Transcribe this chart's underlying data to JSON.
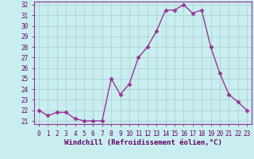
{
  "x": [
    0,
    1,
    2,
    3,
    4,
    5,
    6,
    7,
    8,
    9,
    10,
    11,
    12,
    13,
    14,
    15,
    16,
    17,
    18,
    19,
    20,
    21,
    22,
    23
  ],
  "y": [
    22.0,
    21.5,
    21.8,
    21.8,
    21.2,
    21.0,
    21.0,
    21.0,
    25.0,
    23.5,
    24.5,
    27.0,
    28.0,
    29.5,
    31.5,
    31.5,
    32.0,
    31.2,
    31.5,
    28.0,
    25.5,
    23.5,
    22.8,
    22.0
  ],
  "line_color": "#993399",
  "marker": "D",
  "marker_size": 2.5,
  "bg_color": "#c8eef0",
  "grid_color": "#aacccc",
  "spine_color": "#993399",
  "tick_color": "#660066",
  "xlabel": "Windchill (Refroidissement éolien,°C)",
  "ylim_min": 20.7,
  "ylim_max": 32.3,
  "xlim_min": -0.5,
  "xlim_max": 23.5,
  "yticks": [
    21,
    22,
    23,
    24,
    25,
    26,
    27,
    28,
    29,
    30,
    31,
    32
  ],
  "xticks": [
    0,
    1,
    2,
    3,
    4,
    5,
    6,
    7,
    8,
    9,
    10,
    11,
    12,
    13,
    14,
    15,
    16,
    17,
    18,
    19,
    20,
    21,
    22,
    23
  ],
  "tick_fontsize": 5.5,
  "xlabel_fontsize": 6.5,
  "linewidth": 1.0
}
